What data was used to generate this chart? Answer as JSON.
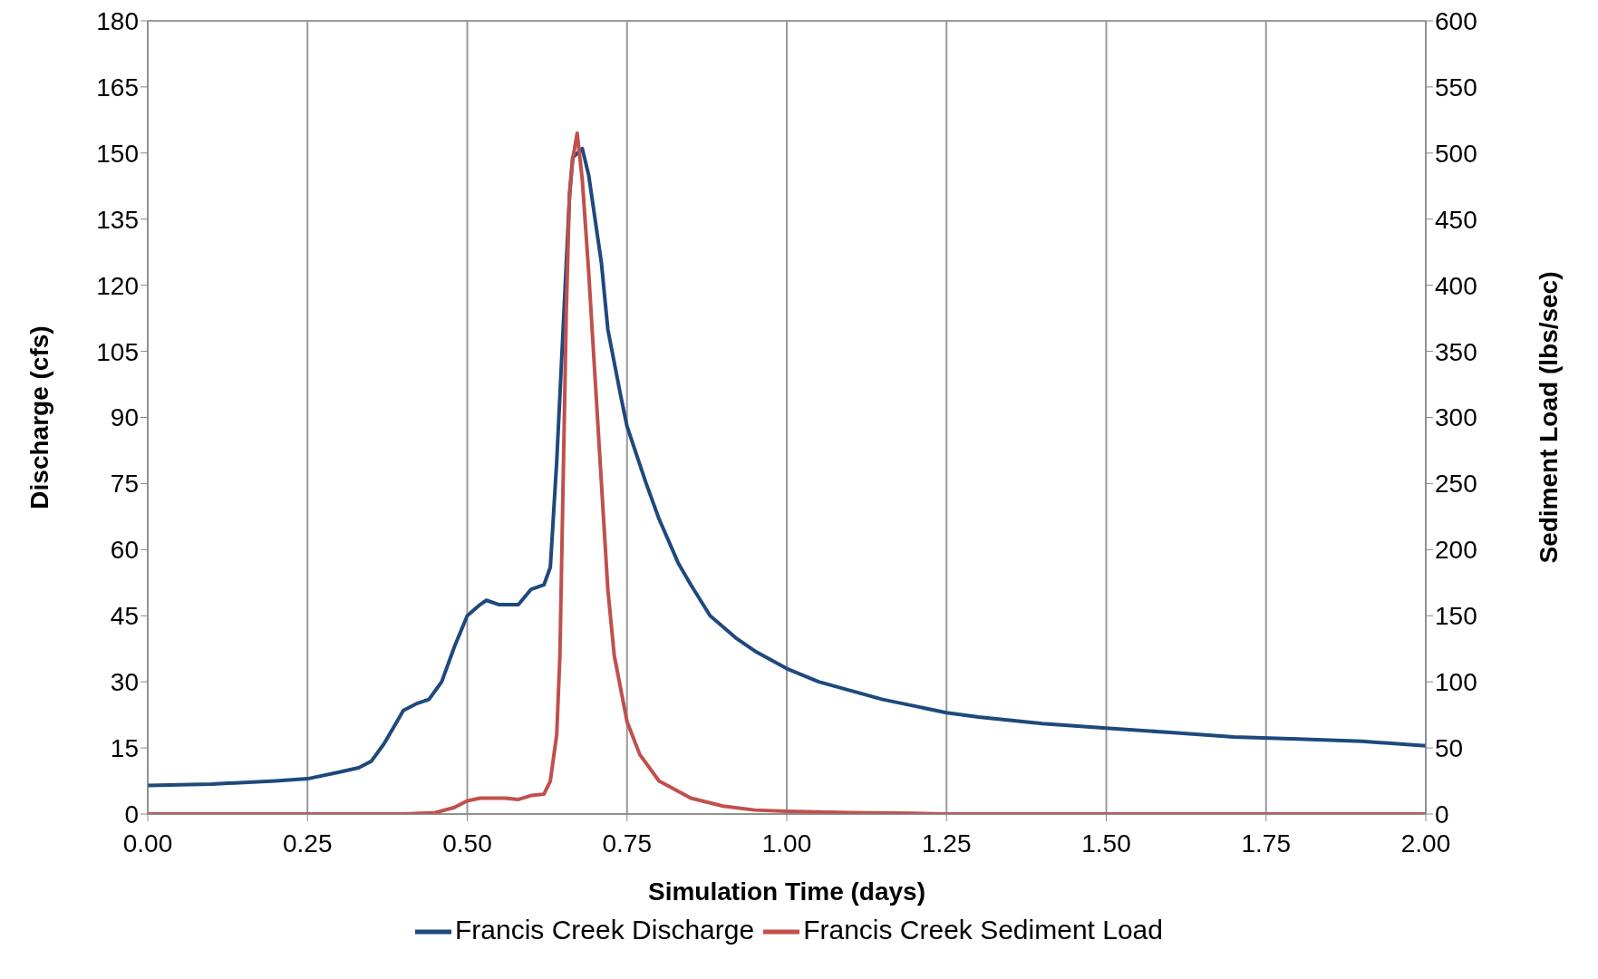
{
  "chart_data": {
    "type": "line",
    "xlabel": "Simulation  Time (days)",
    "ylabel": "Discharge (cfs)",
    "y2label": "Sediment Load (lbs/sec)",
    "xlim": [
      0,
      2
    ],
    "xticks": [
      {
        "value": 0,
        "label": "0.00"
      },
      {
        "value": 0.25,
        "label": "0.25"
      },
      {
        "value": 0.5,
        "label": "0.50"
      },
      {
        "value": 0.75,
        "label": "0.75"
      },
      {
        "value": 1,
        "label": "1.00"
      },
      {
        "value": 1.25,
        "label": "1.25"
      },
      {
        "value": 1.5,
        "label": "1.50"
      },
      {
        "value": 1.75,
        "label": "1.75"
      },
      {
        "value": 2,
        "label": "2.00"
      }
    ],
    "ylim": [
      0,
      180
    ],
    "yticks": [
      0,
      15,
      30,
      45,
      60,
      75,
      90,
      105,
      120,
      135,
      150,
      165,
      180
    ],
    "y2lim": [
      0,
      600
    ],
    "y2ticks": [
      0,
      50,
      100,
      150,
      200,
      250,
      300,
      350,
      400,
      450,
      500,
      550,
      600
    ],
    "grid": true,
    "legend": "bottom",
    "marker": "none",
    "line_style": "solid",
    "series": [
      {
        "name": "Francis Creek Discharge",
        "color": "#1f497d",
        "x": [
          0,
          0.1,
          0.2,
          0.25,
          0.3,
          0.33,
          0.35,
          0.37,
          0.39,
          0.4,
          0.42,
          0.44,
          0.46,
          0.48,
          0.5,
          0.52,
          0.53,
          0.55,
          0.58,
          0.6,
          0.62,
          0.63,
          0.64,
          0.65,
          0.66,
          0.665,
          0.68,
          0.69,
          0.7,
          0.71,
          0.72,
          0.74,
          0.75,
          0.78,
          0.8,
          0.83,
          0.85,
          0.88,
          0.92,
          0.95,
          1,
          1.05,
          1.1,
          1.15,
          1.2,
          1.25,
          1.3,
          1.4,
          1.5,
          1.6,
          1.7,
          1.8,
          1.9,
          2
        ],
        "values": [
          6.5,
          6.8,
          7.5,
          8,
          9.5,
          10.5,
          12,
          16,
          21,
          23.5,
          25,
          26,
          30,
          38,
          45,
          47.5,
          48.5,
          47.5,
          47.5,
          51,
          52,
          56,
          80,
          110,
          140,
          149,
          151,
          145,
          135,
          125,
          110,
          95,
          88,
          75,
          67,
          57,
          52,
          45,
          40,
          37,
          33,
          30,
          28,
          26,
          24.5,
          23,
          22,
          20.5,
          19.5,
          18.5,
          17.5,
          17,
          16.5,
          15.5
        ]
      },
      {
        "name": "Francis Creek Sediment Load",
        "color": "#c0504d",
        "axis": "y2",
        "x": [
          0,
          0.4,
          0.45,
          0.48,
          0.5,
          0.52,
          0.56,
          0.58,
          0.6,
          0.62,
          0.63,
          0.64,
          0.645,
          0.65,
          0.655,
          0.66,
          0.665,
          0.672,
          0.68,
          0.69,
          0.7,
          0.71,
          0.72,
          0.73,
          0.75,
          0.77,
          0.8,
          0.85,
          0.9,
          0.95,
          1,
          1.1,
          1.2,
          1.25,
          2
        ],
        "values": [
          0,
          0,
          1,
          5,
          10,
          12,
          12,
          11,
          14,
          15,
          25,
          60,
          120,
          250,
          380,
          470,
          495,
          515,
          480,
          410,
          330,
          250,
          170,
          120,
          70,
          45,
          25,
          12,
          6,
          3,
          2,
          1,
          0.5,
          0,
          0
        ]
      }
    ]
  }
}
